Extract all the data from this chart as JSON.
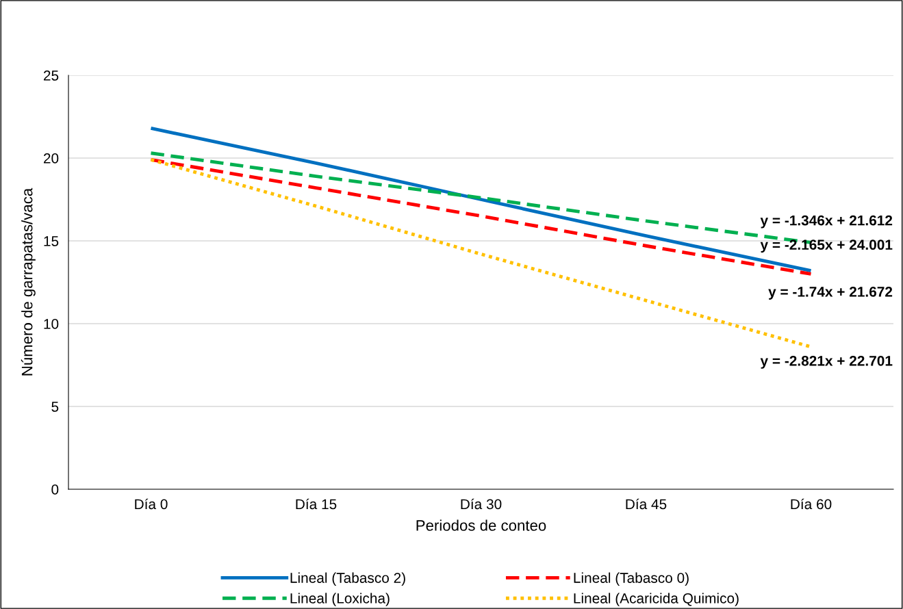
{
  "chart_data": {
    "type": "line",
    "xlabel": "Periodos de conteo",
    "ylabel": "Número de garrapatas/vaca",
    "categories": [
      "Día 0",
      "Día 15",
      "Día 30",
      "Día 45",
      "Día 60"
    ],
    "series": [
      {
        "name": "Lineal (Tabasco 2)",
        "color": "#0070c0",
        "line_style": "solid",
        "values": [
          21.8,
          19.7,
          17.5,
          15.3,
          13.2
        ]
      },
      {
        "name": "Lineal (Tabasco 0)",
        "color": "#ff0000",
        "line_style": "dashed",
        "values": [
          19.9,
          18.2,
          16.5,
          14.7,
          13.0
        ]
      },
      {
        "name": "Lineal (Loxicha)",
        "color": "#00b050",
        "line_style": "dashed",
        "values": [
          20.3,
          18.9,
          17.6,
          16.2,
          14.9
        ]
      },
      {
        "name": "Lineal (Acaricida Quimico)",
        "color": "#ffc000",
        "line_style": "dotted",
        "values": [
          19.9,
          17.1,
          14.2,
          11.4,
          8.6
        ]
      }
    ],
    "ylim": [
      0,
      25
    ],
    "yticks": [
      0,
      5,
      10,
      15,
      20,
      25
    ],
    "grid": "y",
    "legend": "bottom",
    "marker": "none",
    "annotations": [
      "y = -1.346x + 21.612",
      "y = -2.165x + 24.001",
      "y = -1.74x + 21.672",
      "y = -2.821x + 22.701"
    ]
  }
}
